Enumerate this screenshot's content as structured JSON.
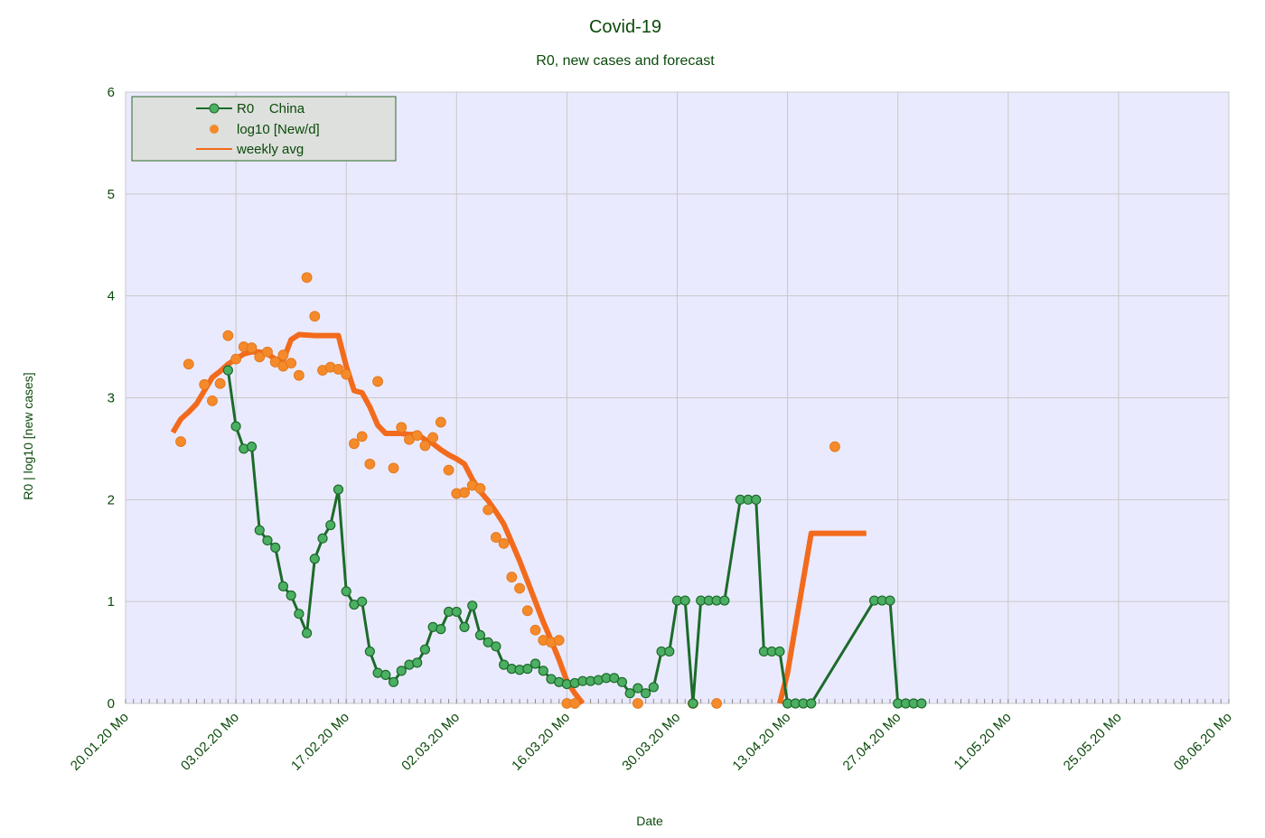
{
  "chart_data": {
    "type": "line",
    "title": "Covid-19",
    "subtitle": "R0, new cases and forecast",
    "xlabel": "Date",
    "ylabel": "R0 | log10 [new cases]",
    "xlim": [
      "2020-01-20",
      "2020-06-08"
    ],
    "ylim": [
      0,
      6
    ],
    "y_ticks": [
      0,
      1,
      2,
      3,
      4,
      5,
      6
    ],
    "x_ticks": [
      {
        "date": "2020-01-20",
        "label": "20.01.20 Mo"
      },
      {
        "date": "2020-02-03",
        "label": "03.02.20 Mo"
      },
      {
        "date": "2020-02-17",
        "label": "17.02.20 Mo"
      },
      {
        "date": "2020-03-02",
        "label": "02.03.20 Mo"
      },
      {
        "date": "2020-03-16",
        "label": "16.03.20 Mo"
      },
      {
        "date": "2020-03-30",
        "label": "30.03.20 Mo"
      },
      {
        "date": "2020-04-13",
        "label": "13.04.20 Mo"
      },
      {
        "date": "2020-04-27",
        "label": "27.04.20 Mo"
      },
      {
        "date": "2020-05-11",
        "label": "11.05.20 Mo"
      },
      {
        "date": "2020-05-25",
        "label": "25.05.20 Mo"
      },
      {
        "date": "2020-06-08",
        "label": "08.06.20 Mo"
      }
    ],
    "grid": true,
    "legend_position": "top-left",
    "colors": {
      "plot_bg": "#eaeaff",
      "grid": "#c8c8c8",
      "r0": "#1c6b2a",
      "r0_marker": "#4caf63",
      "new_cases": "#f48a2a",
      "weekly_avg": "#f26b1d",
      "legend_bg": "#dde0dc",
      "legend_border": "#2a6a2a"
    },
    "series": [
      {
        "name": "R0",
        "legend_label": "R0    China",
        "kind": "line-marker",
        "points": [
          [
            "2020-02-02",
            3.27
          ],
          [
            "2020-02-03",
            2.72
          ],
          [
            "2020-02-04",
            2.5
          ],
          [
            "2020-02-05",
            2.52
          ],
          [
            "2020-02-06",
            1.7
          ],
          [
            "2020-02-07",
            1.6
          ],
          [
            "2020-02-08",
            1.53
          ],
          [
            "2020-02-09",
            1.15
          ],
          [
            "2020-02-10",
            1.06
          ],
          [
            "2020-02-11",
            0.88
          ],
          [
            "2020-02-12",
            0.69
          ],
          [
            "2020-02-13",
            1.42
          ],
          [
            "2020-02-14",
            1.62
          ],
          [
            "2020-02-15",
            1.75
          ],
          [
            "2020-02-16",
            2.1
          ],
          [
            "2020-02-17",
            1.1
          ],
          [
            "2020-02-18",
            0.97
          ],
          [
            "2020-02-19",
            1.0
          ],
          [
            "2020-02-20",
            0.51
          ],
          [
            "2020-02-21",
            0.3
          ],
          [
            "2020-02-22",
            0.28
          ],
          [
            "2020-02-23",
            0.21
          ],
          [
            "2020-02-24",
            0.32
          ],
          [
            "2020-02-25",
            0.38
          ],
          [
            "2020-02-26",
            0.4
          ],
          [
            "2020-02-27",
            0.53
          ],
          [
            "2020-02-28",
            0.75
          ],
          [
            "2020-02-29",
            0.73
          ],
          [
            "2020-03-01",
            0.9
          ],
          [
            "2020-03-02",
            0.9
          ],
          [
            "2020-03-03",
            0.75
          ],
          [
            "2020-03-04",
            0.96
          ],
          [
            "2020-03-05",
            0.67
          ],
          [
            "2020-03-06",
            0.6
          ],
          [
            "2020-03-07",
            0.56
          ],
          [
            "2020-03-08",
            0.38
          ],
          [
            "2020-03-09",
            0.34
          ],
          [
            "2020-03-10",
            0.33
          ],
          [
            "2020-03-11",
            0.34
          ],
          [
            "2020-03-12",
            0.39
          ],
          [
            "2020-03-13",
            0.32
          ],
          [
            "2020-03-14",
            0.24
          ],
          [
            "2020-03-15",
            0.21
          ],
          [
            "2020-03-16",
            0.19
          ],
          [
            "2020-03-17",
            0.2
          ],
          [
            "2020-03-18",
            0.22
          ],
          [
            "2020-03-19",
            0.22
          ],
          [
            "2020-03-20",
            0.23
          ],
          [
            "2020-03-21",
            0.25
          ],
          [
            "2020-03-22",
            0.25
          ],
          [
            "2020-03-23",
            0.21
          ],
          [
            "2020-03-24",
            0.1
          ],
          [
            "2020-03-25",
            0.15
          ],
          [
            "2020-03-26",
            0.1
          ],
          [
            "2020-03-27",
            0.16
          ],
          [
            "2020-03-28",
            0.51
          ],
          [
            "2020-03-29",
            0.51
          ],
          [
            "2020-03-30",
            1.01
          ],
          [
            "2020-03-31",
            1.01
          ],
          [
            "2020-04-01",
            0.0
          ],
          [
            "2020-04-02",
            1.01
          ],
          [
            "2020-04-03",
            1.01
          ],
          [
            "2020-04-04",
            1.01
          ],
          [
            "2020-04-05",
            1.01
          ],
          [
            "2020-04-07",
            2.0
          ],
          [
            "2020-04-08",
            2.0
          ],
          [
            "2020-04-09",
            2.0
          ],
          [
            "2020-04-10",
            0.51
          ],
          [
            "2020-04-11",
            0.51
          ],
          [
            "2020-04-12",
            0.51
          ],
          [
            "2020-04-13",
            0.0
          ],
          [
            "2020-04-14",
            0.0
          ],
          [
            "2020-04-15",
            0.0
          ],
          [
            "2020-04-16",
            0.0
          ],
          [
            "2020-04-24",
            1.01
          ],
          [
            "2020-04-25",
            1.01
          ],
          [
            "2020-04-26",
            1.01
          ],
          [
            "2020-04-27",
            0.0
          ],
          [
            "2020-04-28",
            0.0
          ],
          [
            "2020-04-29",
            0.0
          ],
          [
            "2020-04-30",
            0.0
          ]
        ]
      },
      {
        "name": "log10 [New/d]",
        "legend_label": "log10 [New/d]",
        "kind": "scatter",
        "points": [
          [
            "2020-01-27",
            2.57
          ],
          [
            "2020-01-28",
            3.33
          ],
          [
            "2020-01-30",
            3.13
          ],
          [
            "2020-01-31",
            2.97
          ],
          [
            "2020-02-01",
            3.14
          ],
          [
            "2020-02-02",
            3.61
          ],
          [
            "2020-02-03",
            3.38
          ],
          [
            "2020-02-04",
            3.5
          ],
          [
            "2020-02-05",
            3.49
          ],
          [
            "2020-02-06",
            3.4
          ],
          [
            "2020-02-07",
            3.45
          ],
          [
            "2020-02-08",
            3.35
          ],
          [
            "2020-02-09",
            3.42
          ],
          [
            "2020-02-09",
            3.31
          ],
          [
            "2020-02-10",
            3.34
          ],
          [
            "2020-02-11",
            3.22
          ],
          [
            "2020-02-12",
            4.18
          ],
          [
            "2020-02-13",
            3.8
          ],
          [
            "2020-02-14",
            3.27
          ],
          [
            "2020-02-15",
            3.3
          ],
          [
            "2020-02-16",
            3.28
          ],
          [
            "2020-02-17",
            3.23
          ],
          [
            "2020-02-18",
            2.55
          ],
          [
            "2020-02-19",
            2.62
          ],
          [
            "2020-02-20",
            2.35
          ],
          [
            "2020-02-21",
            3.16
          ],
          [
            "2020-02-23",
            2.31
          ],
          [
            "2020-02-24",
            2.71
          ],
          [
            "2020-02-25",
            2.59
          ],
          [
            "2020-02-26",
            2.63
          ],
          [
            "2020-02-27",
            2.53
          ],
          [
            "2020-02-28",
            2.61
          ],
          [
            "2020-02-29",
            2.76
          ],
          [
            "2020-03-01",
            2.29
          ],
          [
            "2020-03-02",
            2.06
          ],
          [
            "2020-03-03",
            2.07
          ],
          [
            "2020-03-04",
            2.14
          ],
          [
            "2020-03-05",
            2.11
          ],
          [
            "2020-03-06",
            1.9
          ],
          [
            "2020-03-07",
            1.63
          ],
          [
            "2020-03-08",
            1.57
          ],
          [
            "2020-03-09",
            1.24
          ],
          [
            "2020-03-10",
            1.13
          ],
          [
            "2020-03-11",
            0.91
          ],
          [
            "2020-03-12",
            0.72
          ],
          [
            "2020-03-13",
            0.62
          ],
          [
            "2020-03-14",
            0.6
          ],
          [
            "2020-03-15",
            0.62
          ],
          [
            "2020-03-16",
            0.0
          ],
          [
            "2020-03-17",
            0.0
          ],
          [
            "2020-03-25",
            0.0
          ],
          [
            "2020-04-01",
            0.0
          ],
          [
            "2020-04-04",
            0.0
          ],
          [
            "2020-04-19",
            2.52
          ]
        ]
      },
      {
        "name": "weekly avg",
        "legend_label": "weekly avg",
        "kind": "thick-line",
        "points": [
          [
            "2020-01-26",
            2.66
          ],
          [
            "2020-01-27",
            2.79
          ],
          [
            "2020-01-28",
            2.86
          ],
          [
            "2020-01-29",
            2.94
          ],
          [
            "2020-01-30",
            3.07
          ],
          [
            "2020-01-31",
            3.2
          ],
          [
            "2020-02-01",
            3.26
          ],
          [
            "2020-02-02",
            3.33
          ],
          [
            "2020-02-03",
            3.38
          ],
          [
            "2020-02-04",
            3.43
          ],
          [
            "2020-02-05",
            3.45
          ],
          [
            "2020-02-06",
            3.45
          ],
          [
            "2020-02-07",
            3.43
          ],
          [
            "2020-02-08",
            3.38
          ],
          [
            "2020-02-09",
            3.37
          ],
          [
            "2020-02-10",
            3.57
          ],
          [
            "2020-02-11",
            3.62
          ],
          [
            "2020-02-13",
            3.61
          ],
          [
            "2020-02-15",
            3.61
          ],
          [
            "2020-02-16",
            3.61
          ],
          [
            "2020-02-17",
            3.31
          ],
          [
            "2020-02-18",
            3.07
          ],
          [
            "2020-02-19",
            3.05
          ],
          [
            "2020-02-20",
            2.91
          ],
          [
            "2020-02-21",
            2.73
          ],
          [
            "2020-02-22",
            2.65
          ],
          [
            "2020-02-24",
            2.65
          ],
          [
            "2020-02-25",
            2.64
          ],
          [
            "2020-02-26",
            2.64
          ],
          [
            "2020-02-27",
            2.59
          ],
          [
            "2020-02-28",
            2.55
          ],
          [
            "2020-02-29",
            2.49
          ],
          [
            "2020-03-01",
            2.44
          ],
          [
            "2020-03-02",
            2.4
          ],
          [
            "2020-03-03",
            2.35
          ],
          [
            "2020-03-04",
            2.2
          ],
          [
            "2020-03-05",
            2.08
          ],
          [
            "2020-03-06",
            1.99
          ],
          [
            "2020-03-07",
            1.88
          ],
          [
            "2020-03-08",
            1.76
          ],
          [
            "2020-03-09",
            1.58
          ],
          [
            "2020-03-10",
            1.4
          ],
          [
            "2020-03-11",
            1.2
          ],
          [
            "2020-03-12",
            1.0
          ],
          [
            "2020-03-13",
            0.8
          ],
          [
            "2020-03-14",
            0.62
          ],
          [
            "2020-03-15",
            0.43
          ],
          [
            "2020-03-16",
            0.22
          ],
          [
            "2020-03-17",
            0.1
          ],
          [
            "2020-03-18",
            0.0
          ]
        ],
        "segments_after": [
          [
            [
              "2020-04-12",
              0.0
            ],
            [
              "2020-04-13",
              0.3
            ],
            [
              "2020-04-16",
              1.67
            ],
            [
              "2020-04-23",
              1.67
            ]
          ]
        ]
      }
    ]
  }
}
